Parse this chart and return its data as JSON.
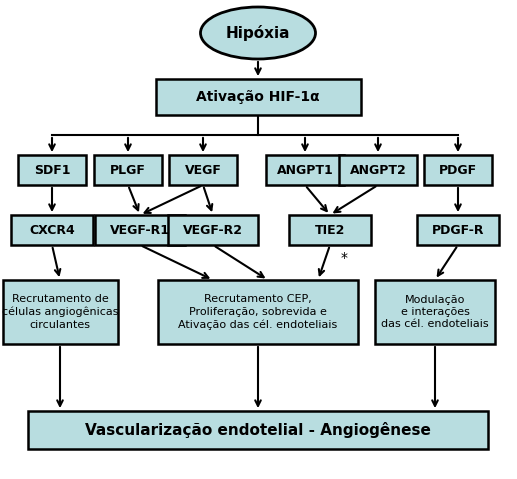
{
  "bg_color": "#ffffff",
  "box_fill": "#b8dde0",
  "box_edge": "#000000",
  "arrow_color": "#000000",
  "title_node": "Hipóxia",
  "level1_node": "Ativação HIF-1α",
  "level2_nodes": [
    "SDF1",
    "PLGF",
    "VEGF",
    "ANGPT1",
    "ANGPT2",
    "PDGF"
  ],
  "level3_nodes": [
    "CXCR4",
    "VEGF-R1",
    "VEGF-R2",
    "TIE2",
    "PDGF-R"
  ],
  "level4_nodes": [
    "Recrutamento de\ncélulas angiogênicas\ncirculantes",
    "Recrutamento CEP,\nProliferação, sobrevida e\nAtivação das cél. endoteliais",
    "Modulação\ne interações\ndas cél. endoteliais"
  ],
  "level5_node": "Vascularização endotelial - Angiogênese",
  "asterisk": "*"
}
